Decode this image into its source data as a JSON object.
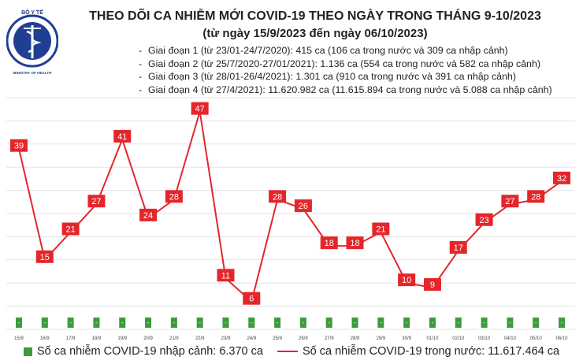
{
  "header": {
    "title": "THEO DÕI CA NHIỄM MỚI COVID-19 THEO NGÀY TRONG THÁNG 9-10/2023",
    "subtitle": "(từ ngày 15/9/2023 đến ngày 06/10/2023)",
    "stages": [
      "Giai đoạn 1 (từ 23/01-24/7/2020): 415 ca (106 ca trong nước và 309 ca nhập cảnh)",
      "Giai đoạn 2 (từ 25/7/2020-27/01/2021): 1.136 ca (554 ca trong nước và 582 ca nhập cảnh)",
      "Giai đoạn 3 (từ 28/01-26/4/2021): 1.301 ca (910 ca trong nước và 391 ca nhập cảnh)",
      "Giai đoạn 4 (từ 27/4/2021): 11.620.982 ca (11.615.894 ca trong nước và 5.088 ca nhập cảnh)"
    ]
  },
  "logo": {
    "text_top": "BỘ Y TẾ",
    "text_bottom": "MINISTRY OF HEALTH",
    "color": "#1f3f93"
  },
  "legend": {
    "imported": "Số ca nhiễm COVID-19 nhập cảnh: 6.370 ca",
    "domestic": "Số ca nhiễm COVID-19 trong nước: 11.617.464 ca"
  },
  "chart_data": {
    "type": "line",
    "categories": [
      "15/9",
      "16/9",
      "17/9",
      "18/9",
      "19/9",
      "20/9",
      "21/9",
      "22/9",
      "23/9",
      "24/9",
      "25/9",
      "26/9",
      "27/9",
      "28/9",
      "29/9",
      "30/9",
      "01/10",
      "02/10",
      "03/10",
      "04/10",
      "05/10",
      "06/10"
    ],
    "series": [
      {
        "name": "Số ca nhiễm COVID-19 trong nước: 11.617.464 ca",
        "type": "line",
        "color": "#e4262b",
        "values": [
          39,
          15,
          21,
          27,
          41,
          24,
          28,
          47,
          11,
          6,
          28,
          26,
          18,
          18,
          21,
          10,
          9,
          17,
          23,
          27,
          28,
          32
        ]
      },
      {
        "name": "Số ca nhiễm COVID-19 nhập cảnh: 6.370 ca",
        "type": "bar",
        "color": "#3b9c3b",
        "values": [
          0,
          0,
          0,
          0,
          0,
          0,
          0,
          0,
          0,
          0,
          0,
          0,
          0,
          0,
          0,
          0,
          0,
          0,
          0,
          0,
          0,
          0
        ],
        "label": "-"
      }
    ],
    "ylim": [
      0,
      50
    ],
    "grid": true,
    "legend_position": "bottom"
  }
}
